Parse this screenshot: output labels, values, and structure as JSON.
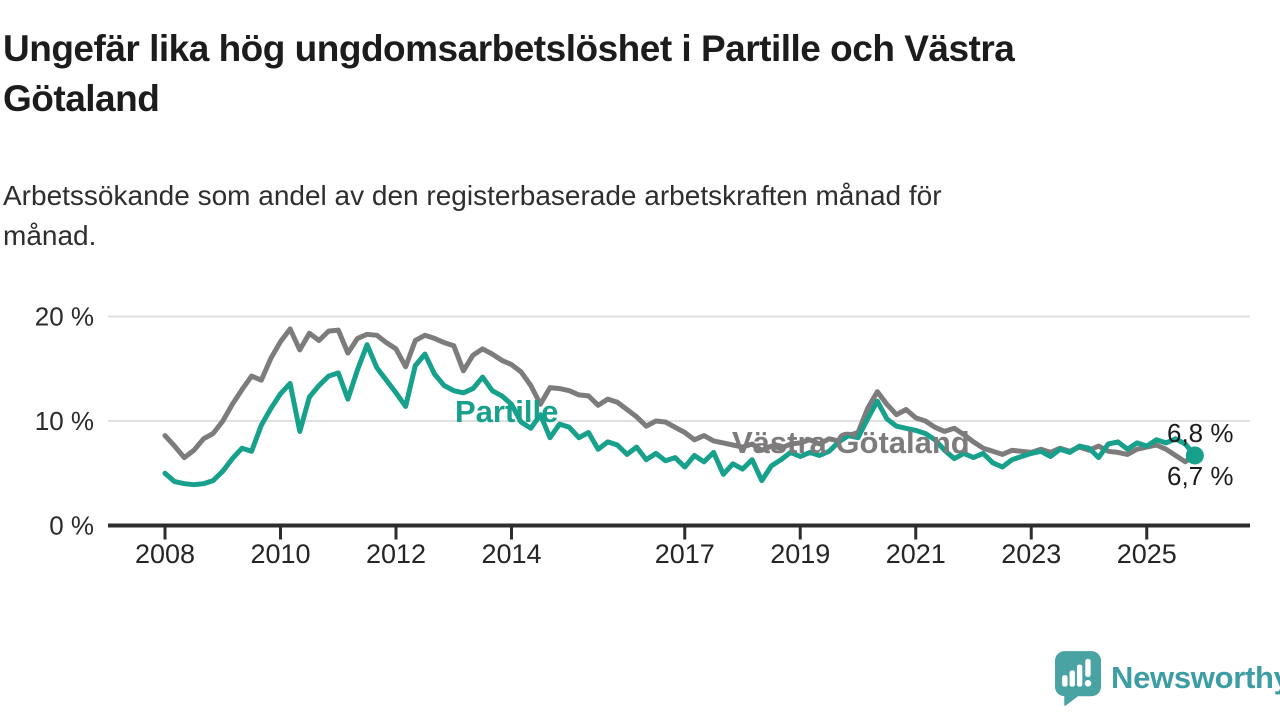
{
  "page": {
    "title_line1": "Ungefär lika hög ungdomsarbetslöshet i Partille och Västra",
    "title_line2": "Götaland",
    "subtitle_line1": "Arbetssökande som andel av den registerbaserade arbetskraften månad för",
    "subtitle_line2": "månad."
  },
  "branding": {
    "logo_text": "Newsworthy",
    "logo_icon": "newsworthy-speech-bubble-bar-chart-icon",
    "logo_text_color": "#3d9da4",
    "logo_icon_color": "#4aa3a3"
  },
  "chart_data": {
    "type": "line",
    "title": "Ungefär lika hög ungdomsarbetslöshet i Partille och Västra Götaland",
    "subtitle": "Arbetssökande som andel av den registerbaserade arbetskraften månad för månad.",
    "x_start": 2008.0,
    "x_step": 0.1666667,
    "x_tick_years": [
      2008,
      2010,
      2012,
      2014,
      2017,
      2019,
      2021,
      2023,
      2025
    ],
    "x_tick_labels": [
      "2008",
      "2010",
      "2012",
      "2014",
      "2017",
      "2019",
      "2021",
      "2023",
      "2025"
    ],
    "y_ticks": [
      0,
      10,
      20
    ],
    "y_tick_labels": [
      "0 %",
      "10 %",
      "20 %"
    ],
    "ylim": [
      0,
      21.5
    ],
    "grid": "horizontal-only",
    "legend": "inline-series-labels",
    "axis_color": "#2d2d2d",
    "grid_color": "#e0e0e0",
    "series": [
      {
        "name": "Västra Götaland",
        "color": "#7d7b7c",
        "end_label": "6,8 %",
        "end_dot": false,
        "values": [
          8.6,
          7.6,
          6.5,
          7.2,
          8.3,
          8.8,
          10.0,
          11.6,
          13.0,
          14.3,
          13.9,
          16.0,
          17.6,
          18.8,
          16.8,
          18.4,
          17.7,
          18.6,
          18.7,
          16.5,
          17.9,
          18.3,
          18.2,
          17.5,
          16.9,
          15.2,
          17.7,
          18.2,
          17.9,
          17.5,
          17.2,
          14.8,
          16.3,
          16.9,
          16.4,
          15.8,
          15.4,
          14.7,
          13.4,
          11.6,
          13.2,
          13.1,
          12.9,
          12.5,
          12.4,
          11.5,
          12.1,
          11.8,
          11.1,
          10.4,
          9.5,
          10.0,
          9.9,
          9.4,
          8.9,
          8.2,
          8.6,
          8.1,
          7.9,
          7.7,
          7.5,
          7.8,
          7.2,
          7.6,
          7.4,
          7.8,
          7.9,
          8.2,
          7.8,
          8.3,
          8.1,
          8.6,
          8.9,
          11.2,
          12.8,
          11.6,
          10.6,
          11.1,
          10.3,
          10.0,
          9.4,
          9.0,
          9.3,
          8.7,
          8.0,
          7.4,
          7.1,
          6.8,
          7.2,
          7.1,
          7.0,
          7.3,
          7.0,
          7.4,
          7.1,
          7.5,
          7.2,
          7.6,
          7.1,
          7.0,
          6.8,
          7.3,
          7.5,
          7.7,
          7.3,
          6.7,
          6.1,
          6.8
        ]
      },
      {
        "name": "Partille",
        "color": "#17a08c",
        "end_label": "6,7 %",
        "end_dot": true,
        "values": [
          5.0,
          4.2,
          4.0,
          3.9,
          4.0,
          4.3,
          5.2,
          6.4,
          7.4,
          7.1,
          9.6,
          11.2,
          12.6,
          13.6,
          9.0,
          12.3,
          13.4,
          14.3,
          14.6,
          12.1,
          14.9,
          17.3,
          15.1,
          13.9,
          12.7,
          11.4,
          15.3,
          16.4,
          14.5,
          13.4,
          12.9,
          12.7,
          13.1,
          14.2,
          12.9,
          12.4,
          11.6,
          9.9,
          9.3,
          10.6,
          8.4,
          9.7,
          9.4,
          8.4,
          8.9,
          7.3,
          8.0,
          7.7,
          6.8,
          7.5,
          6.3,
          6.9,
          6.2,
          6.5,
          5.6,
          6.7,
          6.1,
          7.0,
          4.9,
          5.9,
          5.4,
          6.3,
          4.3,
          5.7,
          6.3,
          7.0,
          6.6,
          7.0,
          6.7,
          7.1,
          8.0,
          8.6,
          8.4,
          10.2,
          11.9,
          10.2,
          9.5,
          9.3,
          9.1,
          8.8,
          8.2,
          7.2,
          6.4,
          6.9,
          6.5,
          6.9,
          6.0,
          5.6,
          6.3,
          6.6,
          6.9,
          7.1,
          6.6,
          7.3,
          7.0,
          7.6,
          7.4,
          6.5,
          7.8,
          8.0,
          7.3,
          7.9,
          7.6,
          8.2,
          7.9,
          8.3,
          7.8,
          6.7
        ]
      }
    ]
  }
}
